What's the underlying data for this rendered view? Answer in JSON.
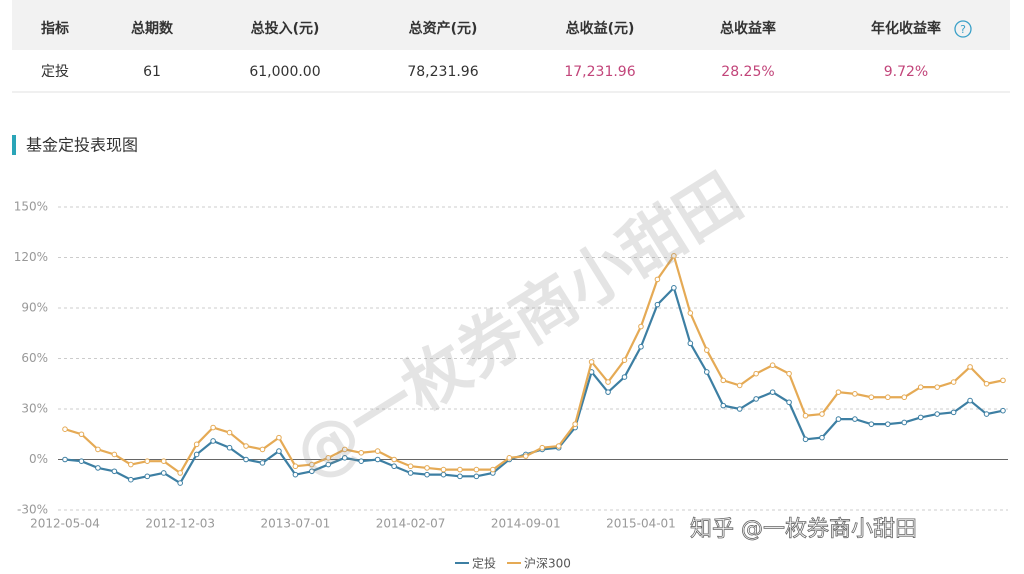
{
  "table": {
    "header": [
      "指标",
      "总期数",
      "总投入(元)",
      "总资产(元)",
      "总收益(元)",
      "总收益率",
      "年化收益率"
    ],
    "help_icon": "?",
    "rows": [
      [
        "定投",
        "61",
        "61,000.00",
        "78,231.96",
        "17,231.96",
        "28.25%",
        "9.72%"
      ]
    ]
  },
  "section_title": "基金定投表现图",
  "watermarks": [
    "@一枚券商小甜田",
    "知乎 @一枚券商小甜田"
  ],
  "chart_data": {
    "type": "line",
    "categories": [
      "2012-05-04",
      null,
      null,
      null,
      null,
      null,
      null,
      "2012-12-03",
      null,
      null,
      null,
      null,
      null,
      null,
      "2013-07-01",
      null,
      null,
      null,
      null,
      null,
      null,
      "2014-02-07",
      null,
      null,
      null,
      null,
      null,
      null,
      "2014-09-01",
      null,
      null,
      null,
      null,
      null,
      null,
      "2015-04-01",
      null,
      null,
      null,
      null,
      null,
      null,
      null,
      null,
      null,
      null,
      null,
      null,
      null,
      null,
      null,
      null,
      null,
      null,
      null,
      null,
      null,
      null
    ],
    "series": [
      {
        "name": "定投",
        "color": "#3d7fa3",
        "values": [
          0,
          -1,
          -5,
          -7,
          -12,
          -10,
          -8,
          -14,
          3,
          11,
          7,
          0,
          -2,
          5,
          -9,
          -7,
          -3,
          1,
          -1,
          0,
          -4,
          -8,
          -9,
          -9,
          -10,
          -10,
          -8,
          0,
          3,
          6,
          7,
          19,
          52,
          40,
          49,
          67,
          92,
          102,
          69,
          52,
          32,
          30,
          36,
          40,
          34,
          12,
          13,
          24,
          24,
          21,
          21,
          22,
          25,
          27,
          28,
          35,
          27,
          29
        ]
      },
      {
        "name": "沪深300",
        "color": "#e5aa55",
        "values": [
          18,
          15,
          6,
          3,
          -3,
          -1,
          -1,
          -8,
          9,
          19,
          16,
          8,
          6,
          13,
          -4,
          -3,
          1,
          6,
          4,
          5,
          0,
          -4,
          -5,
          -6,
          -6,
          -6,
          -6,
          1,
          2,
          7,
          8,
          21,
          58,
          46,
          59,
          79,
          107,
          121,
          87,
          65,
          47,
          44,
          51,
          56,
          51,
          26,
          27,
          40,
          39,
          37,
          37,
          37,
          43,
          43,
          46,
          55,
          45,
          47
        ]
      }
    ],
    "ylim": [
      -30,
      150
    ],
    "yticks": [
      {
        "value": -30,
        "label": "-30%"
      },
      {
        "value": 0,
        "label": "0%"
      },
      {
        "value": 30,
        "label": "30%"
      },
      {
        "value": 60,
        "label": "60%"
      },
      {
        "value": 90,
        "label": "90%"
      },
      {
        "value": 120,
        "label": "120%"
      },
      {
        "value": 150,
        "label": "150%"
      }
    ],
    "grid": true,
    "legend": "bottom"
  }
}
